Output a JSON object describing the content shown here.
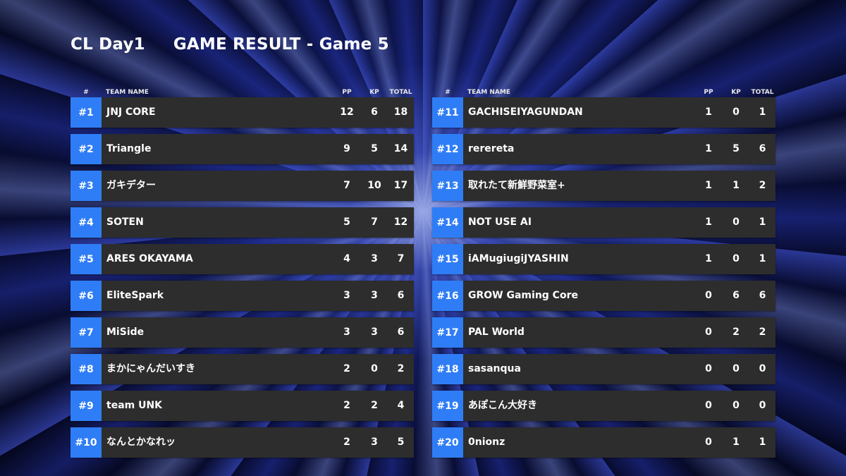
{
  "title": {
    "event": "CL Day1",
    "result": "GAME RESULT - Game 5"
  },
  "headers": {
    "rank": "#",
    "team": "TEAM NAME",
    "pp": "PP",
    "kp": "KP",
    "total": "TOTAL"
  },
  "colors": {
    "rank_bg": "#2f7df6",
    "row_bg": "#2d2d2d"
  },
  "left": [
    {
      "rank": "#1",
      "team": "JNJ CORE",
      "pp": "12",
      "kp": "6",
      "total": "18"
    },
    {
      "rank": "#2",
      "team": "Triangle",
      "pp": "9",
      "kp": "5",
      "total": "14"
    },
    {
      "rank": "#3",
      "team": "ガキデター",
      "pp": "7",
      "kp": "10",
      "total": "17"
    },
    {
      "rank": "#4",
      "team": "SOTEN",
      "pp": "5",
      "kp": "7",
      "total": "12"
    },
    {
      "rank": "#5",
      "team": "ARES OKAYAMA",
      "pp": "4",
      "kp": "3",
      "total": "7"
    },
    {
      "rank": "#6",
      "team": "EliteSpark",
      "pp": "3",
      "kp": "3",
      "total": "6"
    },
    {
      "rank": "#7",
      "team": "MiSide",
      "pp": "3",
      "kp": "3",
      "total": "6"
    },
    {
      "rank": "#8",
      "team": "まかにゃんだいすき",
      "pp": "2",
      "kp": "0",
      "total": "2"
    },
    {
      "rank": "#9",
      "team": "team UNK",
      "pp": "2",
      "kp": "2",
      "total": "4"
    },
    {
      "rank": "#10",
      "team": "なんとかなれッ",
      "pp": "2",
      "kp": "3",
      "total": "5"
    }
  ],
  "right": [
    {
      "rank": "#11",
      "team": "GACHISEIYAGUNDAN",
      "pp": "1",
      "kp": "0",
      "total": "1"
    },
    {
      "rank": "#12",
      "team": "rerereta",
      "pp": "1",
      "kp": "5",
      "total": "6"
    },
    {
      "rank": "#13",
      "team": "取れたて新鮮野菜室+",
      "pp": "1",
      "kp": "1",
      "total": "2"
    },
    {
      "rank": "#14",
      "team": "NOT USE AI",
      "pp": "1",
      "kp": "0",
      "total": "1"
    },
    {
      "rank": "#15",
      "team": "iAMugiugiJYASHIN",
      "pp": "1",
      "kp": "0",
      "total": "1"
    },
    {
      "rank": "#16",
      "team": "GROW Gaming Core",
      "pp": "0",
      "kp": "6",
      "total": "6"
    },
    {
      "rank": "#17",
      "team": "PAL World",
      "pp": "0",
      "kp": "2",
      "total": "2"
    },
    {
      "rank": "#18",
      "team": "sasanqua",
      "pp": "0",
      "kp": "0",
      "total": "0"
    },
    {
      "rank": "#19",
      "team": "あぽこん大好き",
      "pp": "0",
      "kp": "0",
      "total": "0"
    },
    {
      "rank": "#20",
      "team": "0nionz",
      "pp": "0",
      "kp": "1",
      "total": "1"
    }
  ]
}
